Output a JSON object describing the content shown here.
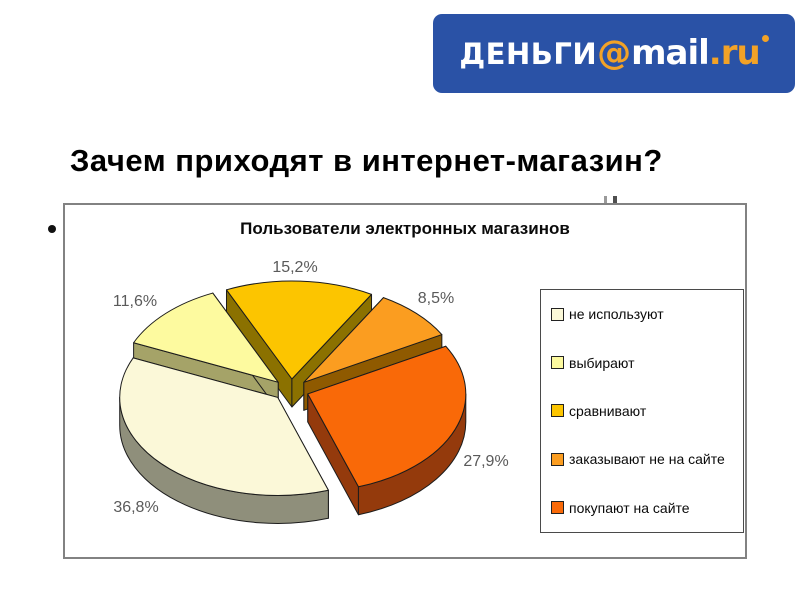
{
  "logo": {
    "text_money": "ДЕНЬГИ",
    "text_at": "@",
    "text_mail": "mail",
    "text_domain": ".ru",
    "bg_color": "#2A52A6",
    "accent_color": "#F2A227",
    "text_color": "#FFFFFF"
  },
  "slide": {
    "title": "Зачем приходят в интернет-магазин?"
  },
  "chart_data": {
    "type": "pie",
    "title": "Пользователи электронных магазинов",
    "effect_3d": true,
    "exploded": true,
    "clockwise": true,
    "start_angle_deg": 161.3,
    "legend_position": "right",
    "label_color": "#5A5A5A",
    "slices": [
      {
        "legend": "не используют",
        "value": 36.8,
        "label": "36,8%",
        "color": "#FBF8D8",
        "side_color": "#8F8F7B"
      },
      {
        "legend": "выбирают",
        "value": 11.6,
        "label": "11,6%",
        "color": "#FDFA9F",
        "side_color": "#A5A368"
      },
      {
        "legend": "сравнивают",
        "value": 15.2,
        "label": "15,2%",
        "color": "#FCC500",
        "side_color": "#8B7100"
      },
      {
        "legend": "заказывают не на сайте",
        "value": 8.5,
        "label": "8,5%",
        "color": "#FB9D20",
        "side_color": "#8F5A00"
      },
      {
        "legend": "покупают на сайте",
        "value": 27.9,
        "label": "27,9%",
        "color": "#F96908",
        "side_color": "#943A0C"
      }
    ]
  }
}
